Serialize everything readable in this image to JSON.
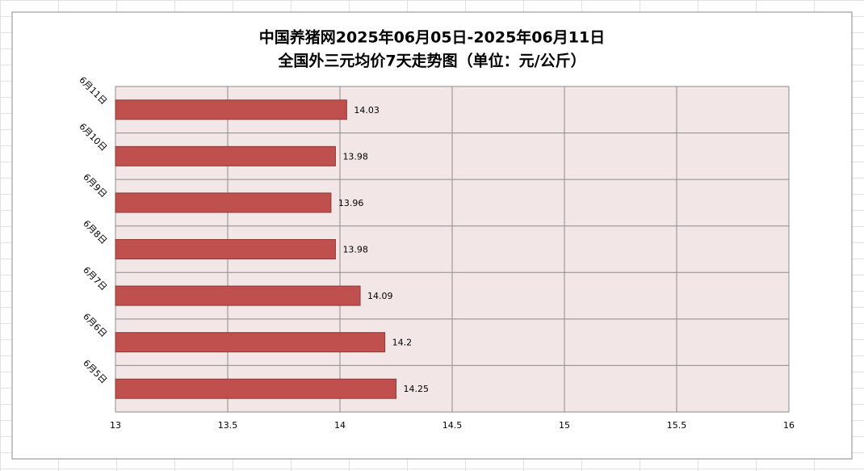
{
  "chart_data": {
    "type": "bar",
    "orientation": "horizontal",
    "title": "中国养猪网2025年06月05日-2025年06月11日",
    "subtitle": "全国外三元均价7天走势图（单位：元/公斤）",
    "categories": [
      "6月5日",
      "6月6日",
      "6月7日",
      "6月8日",
      "6月9日",
      "6月10日",
      "6月11日"
    ],
    "values": [
      14.25,
      14.2,
      14.09,
      13.98,
      13.96,
      13.98,
      14.03
    ],
    "color": "#c0504d",
    "xlim": [
      13,
      16
    ],
    "xticks": [
      13,
      13.5,
      14,
      14.5,
      15,
      15.5,
      16
    ],
    "grid": true
  }
}
